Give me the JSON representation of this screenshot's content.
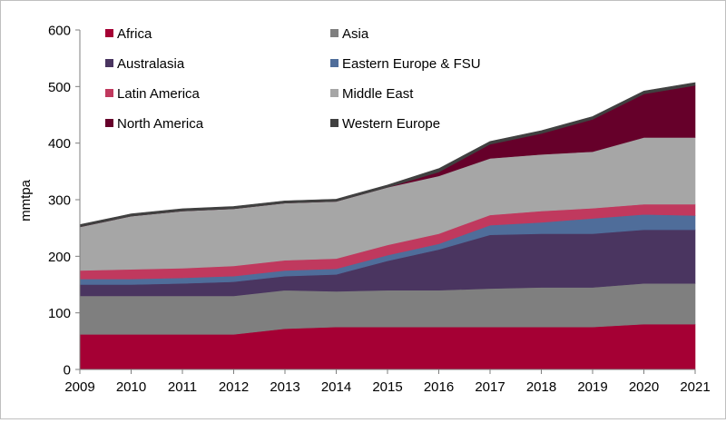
{
  "chart_data": {
    "type": "area",
    "stacked": true,
    "title": "",
    "xlabel": "",
    "ylabel": "mmtpa",
    "x": [
      2009,
      2010,
      2011,
      2012,
      2013,
      2014,
      2015,
      2016,
      2017,
      2018,
      2019,
      2020,
      2021
    ],
    "ylim": [
      0,
      600
    ],
    "yticks": [
      0,
      100,
      200,
      300,
      400,
      500,
      600
    ],
    "legend_placement": "top-left-inside",
    "series": [
      {
        "name": "Africa",
        "color": "#a50034",
        "values": [
          62,
          62,
          62,
          62,
          72,
          75,
          75,
          75,
          75,
          75,
          75,
          80,
          80
        ]
      },
      {
        "name": "Asia",
        "color": "#7f7f7f",
        "values": [
          68,
          68,
          68,
          68,
          68,
          63,
          65,
          65,
          68,
          70,
          70,
          72,
          72
        ]
      },
      {
        "name": "Australasia",
        "color": "#4a3560",
        "values": [
          20,
          20,
          22,
          25,
          25,
          30,
          52,
          72,
          95,
          95,
          95,
          95,
          95
        ]
      },
      {
        "name": "Eastern Europe & FSU",
        "color": "#4f6d9a",
        "values": [
          10,
          10,
          10,
          10,
          10,
          10,
          10,
          10,
          17,
          20,
          27,
          27,
          25
        ]
      },
      {
        "name": "Latin America",
        "color": "#c0395e",
        "values": [
          15,
          17,
          17,
          18,
          18,
          18,
          18,
          18,
          18,
          20,
          18,
          18,
          20
        ]
      },
      {
        "name": "Middle East",
        "color": "#a6a6a6",
        "values": [
          77,
          94,
          101,
          101,
          101,
          101,
          102,
          102,
          100,
          100,
          100,
          118,
          118
        ]
      },
      {
        "name": "North America",
        "color": "#66002a",
        "values": [
          0,
          0,
          0,
          0,
          0,
          0,
          0,
          7,
          25,
          37,
          57,
          77,
          92
        ]
      },
      {
        "name": "Western Europe",
        "color": "#404040",
        "values": [
          4,
          4,
          4,
          4,
          4,
          4,
          4,
          6,
          5,
          5,
          5,
          5,
          5
        ]
      }
    ]
  }
}
